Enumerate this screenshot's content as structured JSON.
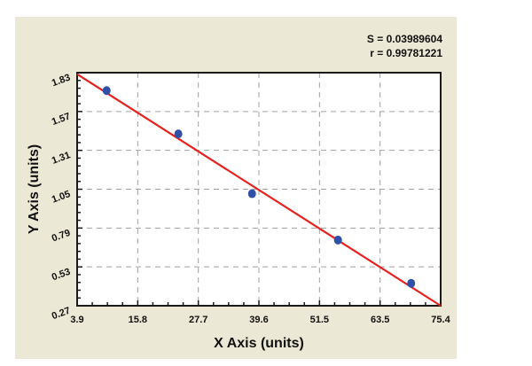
{
  "chart_data": {
    "type": "scatter",
    "title": "",
    "xlabel": "X Axis (units)",
    "ylabel": "Y Axis (units)",
    "xlim": [
      3.9,
      75.4
    ],
    "ylim": [
      0.27,
      1.83
    ],
    "xticks": [
      "3.9",
      "15.8",
      "27.7",
      "39.6",
      "51.5",
      "63.5",
      "75.4"
    ],
    "yticks": [
      "0.27",
      "0.53",
      "0.79",
      "1.05",
      "1.31",
      "1.57",
      "1.83"
    ],
    "grid": true,
    "legend": null,
    "annotations": [
      "S = 0.03989604",
      "r = 0.99781221"
    ],
    "series": [
      {
        "name": "data points",
        "marker": "circle",
        "color": "#2f4fa8",
        "x": [
          9.7,
          23.8,
          38.3,
          55.2,
          69.6
        ],
        "y": [
          1.71,
          1.42,
          1.02,
          0.71,
          0.42
        ]
      },
      {
        "name": "fit line",
        "type": "line",
        "color": "#e8201e",
        "x": [
          3.9,
          75.4
        ],
        "y": [
          1.82,
          0.27
        ]
      }
    ]
  },
  "stats": {
    "s_label": "S = 0.03989604",
    "r_label": "r = 0.99781221"
  }
}
